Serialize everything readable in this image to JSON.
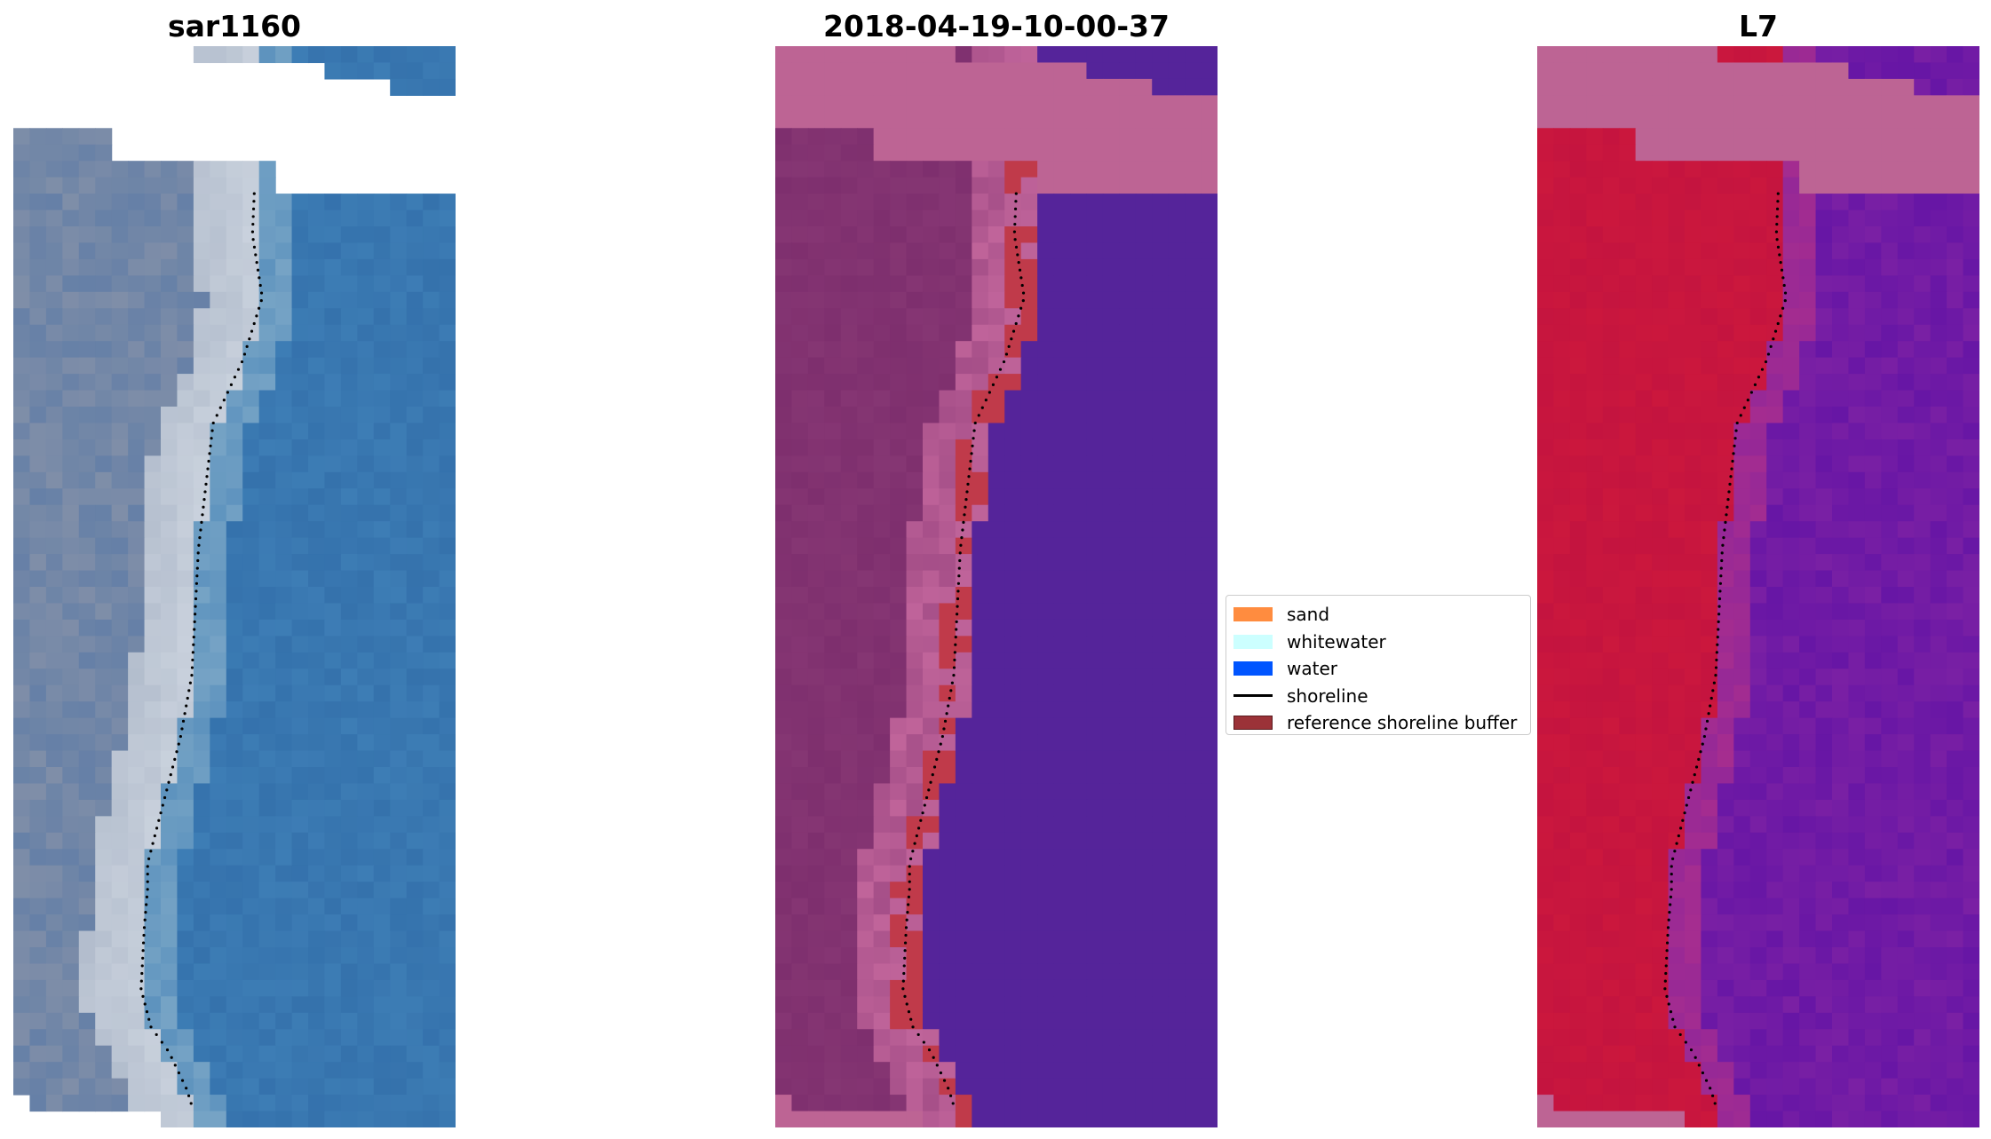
{
  "panels": [
    {
      "title": "sar1160"
    },
    {
      "title": "2018-04-19-10-00-37"
    },
    {
      "title": "L7"
    }
  ],
  "legend": {
    "items": [
      {
        "label": "sand",
        "color": "#ff8c3f",
        "kind": "patch"
      },
      {
        "label": "whitewater",
        "color": "#ccffff",
        "kind": "patch"
      },
      {
        "label": "water",
        "color": "#0055ff",
        "kind": "patch"
      },
      {
        "label": "shoreline",
        "color": "#000000",
        "kind": "line"
      },
      {
        "label": "reference shoreline buffer",
        "color": "#9b3238",
        "kind": "patch"
      }
    ]
  },
  "colors": {
    "rgb_water": "#3d7db5",
    "rgb_land": "#7f8ea8",
    "rgb_beach": "#e8edf2",
    "class_water": "#55249a",
    "class_land": "#7e2f6e",
    "class_beach": "#c0649a",
    "class_buffer": "#c03a4a",
    "mndwi_land": "#c4143f",
    "mndwi_water": "#7a20a4",
    "nodata": "#ffffff",
    "pink_nodata": "#bd6494"
  }
}
